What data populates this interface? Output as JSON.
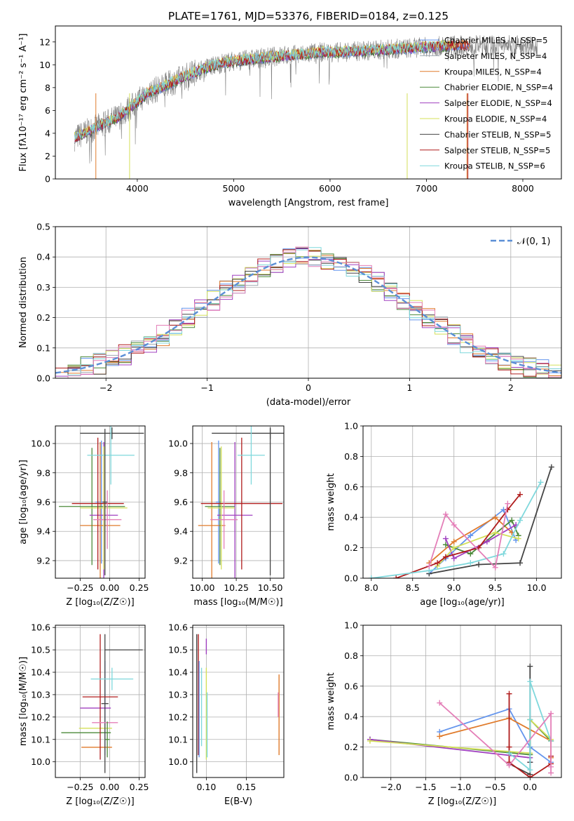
{
  "figure_title": "PLATE=1761, MJD=53376, FIBERID=0184, z=0.125",
  "palette": {
    "Chabrier MILES": "#6495ed",
    "Salpeter MILES": "#9ea7b0",
    "Kroupa MILES": "#e07b2c",
    "Chabrier ELODIE": "#4c8a3a",
    "Salpeter ELODIE": "#a040c0",
    "Kroupa ELODIE": "#d4e05a",
    "Chabrier STELIB": "#444444",
    "Salpeter STELIB": "#b01c1c",
    "Kroupa STELIB": "#7fd8dc",
    "pink": "#e47fb8",
    "data": "#808080",
    "gauss": "#5b8fd6",
    "grid": "#b0b0b0"
  },
  "chart_data": [
    {
      "id": "spectrum",
      "type": "line",
      "title": "PLATE=1761, MJD=53376, FIBERID=0184, z=0.125",
      "xlabel": "wavelength [Angstrom, rest frame]",
      "ylabel": "Flux [fλ10⁻¹⁷ erg cm⁻² s⁻¹ A⁻¹]",
      "xlim": [
        3150,
        8400
      ],
      "ylim": [
        0,
        13.4
      ],
      "xticks": [
        4000,
        5000,
        6000,
        7000,
        8000
      ],
      "yticks": [
        0,
        2,
        4,
        6,
        8,
        10,
        12
      ],
      "grid": false,
      "legend_position": "upper-right",
      "legend": [
        {
          "label": "Chabrier MILES, N_SSP=5",
          "color": "#6495ed"
        },
        {
          "label": "Salpeter MILES, N_SSP=4",
          "color": "#9ea7b0"
        },
        {
          "label": "Kroupa MILES, N_SSP=4",
          "color": "#e07b2c"
        },
        {
          "label": "Chabrier ELODIE, N_SSP=4",
          "color": "#4c8a3a"
        },
        {
          "label": "Salpeter ELODIE, N_SSP=4",
          "color": "#a040c0"
        },
        {
          "label": "Kroupa ELODIE, N_SSP=4",
          "color": "#d4e05a"
        },
        {
          "label": "Chabrier STELIB, N_SSP=5",
          "color": "#444444"
        },
        {
          "label": "Salpeter STELIB, N_SSP=5",
          "color": "#b01c1c"
        },
        {
          "label": "Kroupa STELIB, N_SSP=6",
          "color": "#7fd8dc"
        }
      ],
      "continuum": {
        "x": [
          3350,
          3500,
          3650,
          3800,
          3950,
          4100,
          4300,
          4500,
          4700,
          4900,
          5100,
          5300,
          5500,
          5700,
          5900,
          6100,
          6300,
          6500,
          6700,
          6900,
          7100,
          7300,
          7450
        ],
        "y": [
          3.6,
          4.2,
          4.8,
          5.4,
          6.4,
          7.5,
          8.2,
          9.0,
          9.7,
          10.2,
          10.4,
          10.6,
          10.8,
          10.9,
          11.1,
          11.1,
          11.2,
          11.3,
          11.4,
          11.5,
          11.6,
          11.7,
          11.7
        ]
      },
      "models_end": [
        7450,
        7100,
        7450,
        7250,
        7300,
        7300,
        7450,
        7450,
        7200
      ]
    },
    {
      "id": "residuals",
      "type": "line",
      "xlabel": "(data-model)/error",
      "ylabel": "Normed distribution",
      "xlim": [
        -2.5,
        2.5
      ],
      "ylim": [
        0,
        0.5
      ],
      "xticks": [
        -2,
        -1,
        0,
        1,
        2
      ],
      "yticks": [
        0.0,
        0.1,
        0.2,
        0.3,
        0.4,
        0.5
      ],
      "grid": true,
      "legend_position": "upper-right",
      "legend": [
        {
          "label": "𝒩(0, 1)",
          "color": "#5b8fd6",
          "style": "dashed"
        }
      ],
      "histogram_bins": 40
    },
    {
      "id": "age-vs-Z",
      "type": "scatter",
      "xlabel": "Z [log₁₀(Z/Z☉)]",
      "ylabel": "age  [log₁₀(age/yr)]",
      "xlim": [
        -0.46,
        0.3
      ],
      "ylim": [
        9.08,
        10.12
      ],
      "xticks": [
        -0.25,
        0.0,
        0.25
      ],
      "yticks": [
        9.2,
        9.4,
        9.6,
        9.8,
        10.0
      ],
      "grid": true,
      "errorbars": [
        {
          "color": "#6495ed",
          "x": -0.07,
          "y": 9.6,
          "xerr": 0.05,
          "yerr": 0.42
        },
        {
          "color": "#e07b2c",
          "x": -0.08,
          "y": 9.44,
          "xerr": 0.17,
          "yerr": 0.57
        },
        {
          "color": "#4c8a3a",
          "x": -0.15,
          "y": 9.57,
          "xerr": 0.28,
          "yerr": 0.4
        },
        {
          "color": "#a040c0",
          "x": -0.05,
          "y": 9.51,
          "xerr": 0.12,
          "yerr": 0.5
        },
        {
          "color": "#d4e05a",
          "x": -0.05,
          "y": 9.56,
          "xerr": 0.2,
          "yerr": 0.42
        },
        {
          "color": "#444444",
          "x": 0.02,
          "y": 10.07,
          "xerr": 0.27,
          "yerr": 0.04
        },
        {
          "color": "#b01c1c",
          "x": -0.1,
          "y": 9.59,
          "xerr": 0.22,
          "yerr": 0.45
        },
        {
          "color": "#7fd8dc",
          "x": 0.01,
          "y": 9.92,
          "xerr": 0.2,
          "yerr": 0.2
        },
        {
          "color": "#e47fb8",
          "x": -0.02,
          "y": 9.48,
          "xerr": 0.12,
          "yerr": 0.2
        },
        {
          "color": "#444444",
          "x": -0.04,
          "y": 9.6,
          "xerr": 0.02,
          "yerr": 0.5
        }
      ]
    },
    {
      "id": "age-vs-mass",
      "type": "scatter",
      "xlabel": "mass [log₁₀(M/M☉)]",
      "ylabel": "",
      "xlim": [
        9.93,
        10.6
      ],
      "ylim": [
        9.08,
        10.12
      ],
      "xticks": [
        10.0,
        10.25,
        10.5
      ],
      "yticks": [
        9.2,
        9.4,
        9.6,
        9.8,
        10.0
      ],
      "grid": true,
      "errorbars": [
        {
          "color": "#6495ed",
          "x": 10.12,
          "y": 9.6,
          "xerr": 0.02,
          "yerr": 0.42
        },
        {
          "color": "#e07b2c",
          "x": 10.07,
          "y": 9.44,
          "xerr": 0.1,
          "yerr": 0.57
        },
        {
          "color": "#4c8a3a",
          "x": 10.13,
          "y": 9.57,
          "xerr": 0.11,
          "yerr": 0.4
        },
        {
          "color": "#a040c0",
          "x": 10.24,
          "y": 9.51,
          "xerr": 0.13,
          "yerr": 0.5
        },
        {
          "color": "#d4e05a",
          "x": 10.14,
          "y": 9.56,
          "xerr": 0.1,
          "yerr": 0.42
        },
        {
          "color": "#444444",
          "x": 10.5,
          "y": 10.07,
          "xerr": 0.43,
          "yerr": 0.04
        },
        {
          "color": "#b01c1c",
          "x": 10.29,
          "y": 9.59,
          "xerr": 0.3,
          "yerr": 0.45
        },
        {
          "color": "#7fd8dc",
          "x": 10.36,
          "y": 9.92,
          "xerr": 0.1,
          "yerr": 0.2
        },
        {
          "color": "#e47fb8",
          "x": 10.16,
          "y": 9.48,
          "xerr": 0.1,
          "yerr": 0.2
        },
        {
          "color": "#444444",
          "x": 10.5,
          "y": 9.6,
          "xerr": 0.0,
          "yerr": 0.5
        }
      ]
    },
    {
      "id": "weight-vs-age",
      "type": "line",
      "xlabel": "age  [log₁₀(age/yr)]",
      "ylabel": "mass weight",
      "xlim": [
        7.9,
        10.3
      ],
      "ylim": [
        0,
        1
      ],
      "xticks": [
        8.0,
        8.5,
        9.0,
        9.5,
        10.0
      ],
      "yticks": [
        0.0,
        0.2,
        0.4,
        0.6,
        0.8,
        1.0
      ],
      "grid": true,
      "series": [
        {
          "color": "#6495ed",
          "x": [
            8.7,
            8.9,
            9.2,
            9.6,
            9.75
          ],
          "y": [
            0.03,
            0.13,
            0.28,
            0.45,
            0.25
          ]
        },
        {
          "color": "#e07b2c",
          "x": [
            8.7,
            9.0,
            9.5,
            9.7
          ],
          "y": [
            0.1,
            0.24,
            0.4,
            0.3
          ]
        },
        {
          "color": "#4c8a3a",
          "x": [
            8.9,
            9.2,
            9.7,
            9.78
          ],
          "y": [
            0.22,
            0.16,
            0.38,
            0.28
          ]
        },
        {
          "color": "#a040c0",
          "x": [
            8.9,
            9.0,
            9.4,
            9.75
          ],
          "y": [
            0.26,
            0.13,
            0.24,
            0.35
          ]
        },
        {
          "color": "#d4e05a",
          "x": [
            8.8,
            9.0,
            9.5,
            9.78
          ],
          "y": [
            0.08,
            0.2,
            0.3,
            0.26
          ]
        },
        {
          "color": "#444444",
          "x": [
            8.7,
            9.3,
            9.8,
            10.18
          ],
          "y": [
            0.03,
            0.09,
            0.1,
            0.73
          ]
        },
        {
          "color": "#b01c1c",
          "x": [
            8.3,
            8.8,
            8.9,
            9.3,
            9.65,
            9.8
          ],
          "y": [
            0.0,
            0.1,
            0.14,
            0.2,
            0.45,
            0.55
          ]
        },
        {
          "color": "#7fd8dc",
          "x": [
            8.0,
            8.7,
            9.2,
            9.6,
            9.8,
            10.05
          ],
          "y": [
            0.0,
            0.05,
            0.1,
            0.16,
            0.38,
            0.63
          ]
        },
        {
          "color": "#e47fb8",
          "x": [
            8.7,
            8.9,
            9.0,
            9.5,
            9.65
          ],
          "y": [
            0.08,
            0.42,
            0.35,
            0.07,
            0.49
          ]
        }
      ]
    },
    {
      "id": "mass-vs-Z",
      "type": "scatter",
      "xlabel": "Z [log₁₀(Z/Z☉)]",
      "ylabel": "mass [log₁₀(M/M☉)]",
      "xlim": [
        -0.46,
        0.3
      ],
      "ylim": [
        9.93,
        10.61
      ],
      "xticks": [
        -0.25,
        0.0,
        0.25
      ],
      "yticks": [
        10.0,
        10.1,
        10.2,
        10.3,
        10.4,
        10.5,
        10.6
      ],
      "grid": true,
      "errorbars": [
        {
          "color": "#6495ed",
          "x": -0.04,
          "y": 10.24,
          "xerr": 0.01,
          "yerr": 0.21
        },
        {
          "color": "#e07b2c",
          "x": -0.11,
          "y": 10.065,
          "xerr": 0.13,
          "yerr": 0.0
        },
        {
          "color": "#4c8a3a",
          "x": -0.2,
          "y": 10.13,
          "xerr": 0.21,
          "yerr": 0.0
        },
        {
          "color": "#a040c0",
          "x": -0.12,
          "y": 10.24,
          "xerr": 0.13,
          "yerr": 0.0
        },
        {
          "color": "#d4e05a",
          "x": -0.12,
          "y": 10.15,
          "xerr": 0.14,
          "yerr": 0.0
        },
        {
          "color": "#444444",
          "x": 0.12,
          "y": 10.5,
          "xerr": 0.16,
          "yerr": 0.0
        },
        {
          "color": "#444444",
          "x": -0.04,
          "y": 10.26,
          "xerr": 0.03,
          "yerr": 0.31
        },
        {
          "color": "#b01c1c",
          "x": -0.08,
          "y": 10.29,
          "xerr": 0.15,
          "yerr": 0.28
        },
        {
          "color": "#7fd8dc",
          "x": 0.02,
          "y": 10.37,
          "xerr": 0.18,
          "yerr": 0.05
        },
        {
          "color": "#e47fb8",
          "x": -0.04,
          "y": 10.175,
          "xerr": 0.11,
          "yerr": 0.0
        },
        {
          "color": "#4c8a3a",
          "x": -0.02,
          "y": 10.1,
          "xerr": 0.02,
          "yerr": 0.08
        }
      ]
    },
    {
      "id": "mass-vs-EBV",
      "type": "scatter",
      "xlabel": "E(B-V)",
      "ylabel": "",
      "xlim": [
        0.083,
        0.197
      ],
      "ylim": [
        9.93,
        10.61
      ],
      "xticks": [
        0.1,
        0.15
      ],
      "yticks": [
        10.0,
        10.1,
        10.2,
        10.3,
        10.4,
        10.5,
        10.6
      ],
      "grid": true,
      "verticals": [
        {
          "color": "#444444",
          "x": 0.088,
          "y0": 9.95,
          "y1": 10.57
        },
        {
          "color": "#b01c1c",
          "x": 0.09,
          "y0": 10.03,
          "y1": 10.57
        },
        {
          "color": "#6495ed",
          "x": 0.091,
          "y0": 10.02,
          "y1": 10.45
        },
        {
          "color": "#7fd8dc",
          "x": 0.094,
          "y0": 10.07,
          "y1": 10.42
        },
        {
          "color": "#a040c0",
          "x": 0.1,
          "y0": 10.48,
          "y1": 10.55
        },
        {
          "color": "#d4e05a",
          "x": 0.1,
          "y0": 10.01,
          "y1": 10.42
        },
        {
          "color": "#7fd8dc",
          "x": 0.101,
          "y0": 10.02,
          "y1": 10.31
        },
        {
          "color": "#e07b2c",
          "x": 0.191,
          "y0": 10.03,
          "y1": 10.39
        },
        {
          "color": "#e47fb8",
          "x": 0.19,
          "y0": 10.2,
          "y1": 10.31
        }
      ]
    },
    {
      "id": "weight-vs-Z",
      "type": "line",
      "xlabel": "Z [log₁₀(Z/Z☉)]",
      "ylabel": "mass weight",
      "xlim": [
        -2.4,
        0.45
      ],
      "ylim": [
        0,
        1
      ],
      "xticks": [
        -2.0,
        -1.5,
        -1.0,
        -0.5,
        0.0
      ],
      "yticks": [
        0.0,
        0.2,
        0.4,
        0.6,
        0.8,
        1.0
      ],
      "grid": true,
      "series": [
        {
          "color": "#6495ed",
          "x": [
            -1.3,
            -0.3,
            0.0,
            0.3
          ],
          "y": [
            0.3,
            0.45,
            0.2,
            0.1
          ]
        },
        {
          "color": "#e07b2c",
          "x": [
            -1.3,
            -0.3,
            0.3,
            0.3
          ],
          "y": [
            0.27,
            0.39,
            0.24,
            0.13
          ]
        },
        {
          "color": "#4c8a3a",
          "x": [
            -2.3,
            0.0,
            0.0,
            0.3
          ],
          "y": [
            0.25,
            0.15,
            0.38,
            0.24
          ]
        },
        {
          "color": "#a040c0",
          "x": [
            -2.3,
            0.0,
            0.0
          ],
          "y": [
            0.25,
            0.13,
            0.1
          ]
        },
        {
          "color": "#d4e05a",
          "x": [
            -2.3,
            0.0,
            0.0,
            0.3
          ],
          "y": [
            0.24,
            0.16,
            0.38,
            0.25
          ]
        },
        {
          "color": "#444444",
          "x": [
            -0.3,
            0.0,
            0.0,
            0.0
          ],
          "y": [
            0.09,
            0.02,
            0.1,
            0.73
          ]
        },
        {
          "color": "#b01c1c",
          "x": [
            -0.3,
            -0.3,
            -0.3,
            0.0,
            0.3,
            0.3
          ],
          "y": [
            0.55,
            0.2,
            0.1,
            0.0,
            0.09,
            0.14
          ]
        },
        {
          "color": "#7fd8dc",
          "x": [
            -0.3,
            0.0,
            0.0,
            0.0,
            0.3
          ],
          "y": [
            0.16,
            0.05,
            0.38,
            0.63,
            0.24
          ]
        },
        {
          "color": "#e47fb8",
          "x": [
            -1.3,
            -0.3,
            0.3,
            0.3,
            0.3
          ],
          "y": [
            0.49,
            0.08,
            0.42,
            0.07,
            0.03
          ]
        }
      ]
    }
  ]
}
